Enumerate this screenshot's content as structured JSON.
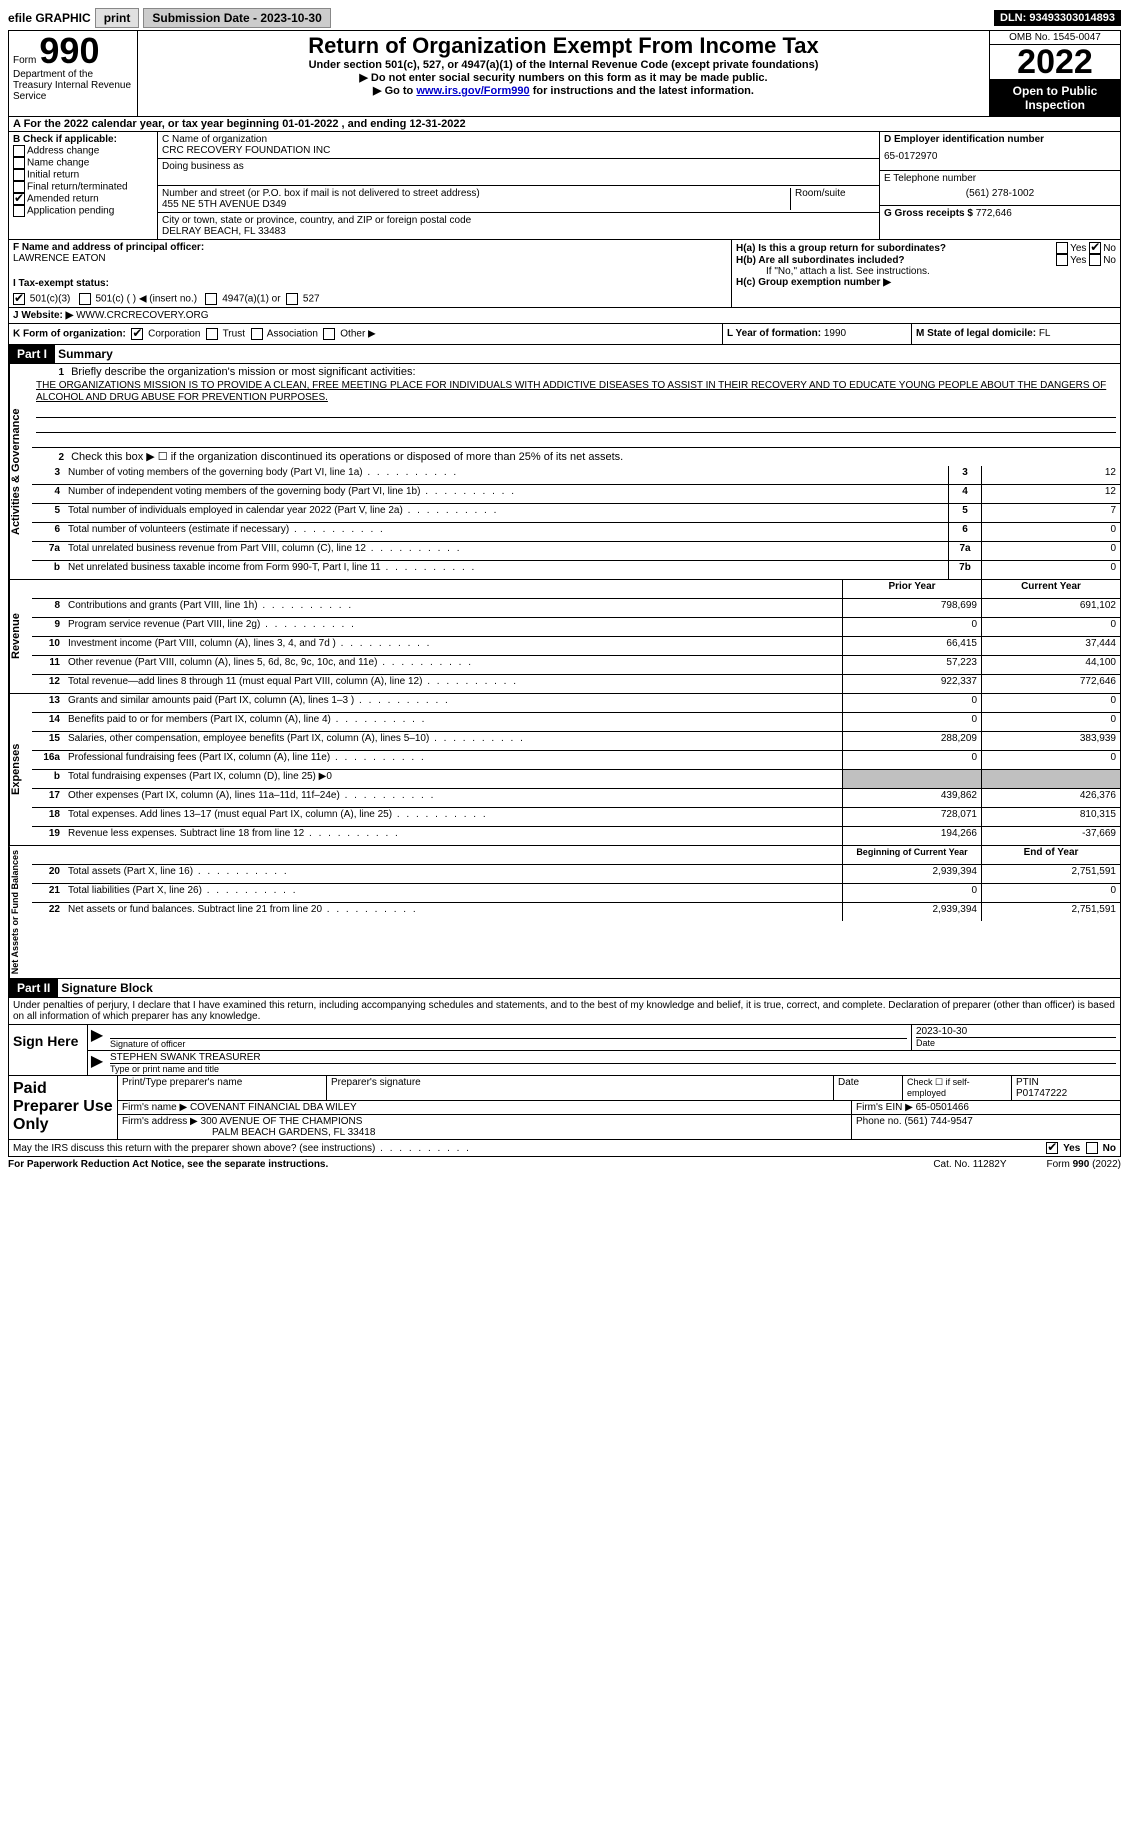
{
  "topbar": {
    "efile_label": "efile GRAPHIC",
    "print_btn": "print",
    "submission_label": "Submission Date - 2023-10-30",
    "dln": "DLN: 93493303014893"
  },
  "header": {
    "form_label": "Form",
    "form_number": "990",
    "dept": "Department of the Treasury Internal Revenue Service",
    "title": "Return of Organization Exempt From Income Tax",
    "subtitle": "Under section 501(c), 527, or 4947(a)(1) of the Internal Revenue Code (except private foundations)",
    "note1": "▶ Do not enter social security numbers on this form as it may be made public.",
    "note2_pre": "▶ Go to ",
    "note2_link": "www.irs.gov/Form990",
    "note2_post": " for instructions and the latest information.",
    "omb": "OMB No. 1545-0047",
    "year": "2022",
    "open": "Open to Public Inspection"
  },
  "row_a": "A For the 2022 calendar year, or tax year beginning 01-01-2022    , and ending 12-31-2022",
  "col_b": {
    "header": "B Check if applicable:",
    "items": [
      "Address change",
      "Name change",
      "Initial return",
      "Final return/terminated",
      "Amended return",
      "Application pending"
    ],
    "checked_index": 4
  },
  "col_c": {
    "name_label": "C Name of organization",
    "name": "CRC RECOVERY FOUNDATION INC",
    "dba_label": "Doing business as",
    "addr_label": "Number and street (or P.O. box if mail is not delivered to street address)",
    "addr": "455 NE 5TH AVENUE D349",
    "room_label": "Room/suite",
    "city_label": "City or town, state or province, country, and ZIP or foreign postal code",
    "city": "DELRAY BEACH, FL  33483"
  },
  "col_d": {
    "ein_label": "D Employer identification number",
    "ein": "65-0172970",
    "phone_label": "E Telephone number",
    "phone": "(561) 278-1002",
    "gross_label": "G Gross receipts $ ",
    "gross": "772,646"
  },
  "section_fh": {
    "f_label": "F Name and address of principal officer:",
    "f_name": "LAWRENCE EATON",
    "ha_label": "H(a)  Is this a group return for subordinates?",
    "hb_label": "H(b)  Are all subordinates included?",
    "hb_note": "If \"No,\" attach a list. See instructions.",
    "hc_label": "H(c)  Group exemption number ▶",
    "yes": "Yes",
    "no": "No"
  },
  "row_i": {
    "label": "I    Tax-exempt status:",
    "opt1": "501(c)(3)",
    "opt2": "501(c) (  ) ◀ (insert no.)",
    "opt3": "4947(a)(1) or",
    "opt4": "527"
  },
  "row_j": {
    "label": "J    Website: ▶",
    "value": "WWW.CRCRECOVERY.ORG"
  },
  "row_k": {
    "k_label": "K Form of organization:",
    "k_opts": [
      "Corporation",
      "Trust",
      "Association",
      "Other ▶"
    ],
    "l_label": "L Year of formation: ",
    "l_value": "1990",
    "m_label": "M State of legal domicile: ",
    "m_value": "FL"
  },
  "part1": {
    "header": "Part I",
    "title": "Summary",
    "q1_label": "Briefly describe the organization's mission or most significant activities:",
    "q1_text": "THE ORGANIZATIONS MISSION IS TO PROVIDE A CLEAN, FREE MEETING PLACE FOR INDIVIDUALS WITH ADDICTIVE DISEASES TO ASSIST IN THEIR RECOVERY AND TO EDUCATE YOUNG PEOPLE ABOUT THE DANGERS OF ALCOHOL AND DRUG ABUSE FOR PREVENTION PURPOSES.",
    "q2": "Check this box ▶ ☐ if the organization discontinued its operations or disposed of more than 25% of its net assets.",
    "prior_year_h": "Prior Year",
    "current_year_h": "Current Year",
    "begin_h": "Beginning of Current Year",
    "end_h": "End of Year",
    "sides": {
      "gov": "Activities & Governance",
      "rev": "Revenue",
      "exp": "Expenses",
      "net": "Net Assets or Fund Balances"
    },
    "gov_rows": [
      {
        "n": "3",
        "d": "Number of voting members of the governing body (Part VI, line 1a)",
        "box": "3",
        "v": "12"
      },
      {
        "n": "4",
        "d": "Number of independent voting members of the governing body (Part VI, line 1b)",
        "box": "4",
        "v": "12"
      },
      {
        "n": "5",
        "d": "Total number of individuals employed in calendar year 2022 (Part V, line 2a)",
        "box": "5",
        "v": "7"
      },
      {
        "n": "6",
        "d": "Total number of volunteers (estimate if necessary)",
        "box": "6",
        "v": "0"
      },
      {
        "n": "7a",
        "d": "Total unrelated business revenue from Part VIII, column (C), line 12",
        "box": "7a",
        "v": "0"
      },
      {
        "n": "b",
        "d": "Net unrelated business taxable income from Form 990-T, Part I, line 11",
        "box": "7b",
        "v": "0"
      }
    ],
    "rev_rows": [
      {
        "n": "8",
        "d": "Contributions and grants (Part VIII, line 1h)",
        "p": "798,699",
        "c": "691,102"
      },
      {
        "n": "9",
        "d": "Program service revenue (Part VIII, line 2g)",
        "p": "0",
        "c": "0"
      },
      {
        "n": "10",
        "d": "Investment income (Part VIII, column (A), lines 3, 4, and 7d )",
        "p": "66,415",
        "c": "37,444"
      },
      {
        "n": "11",
        "d": "Other revenue (Part VIII, column (A), lines 5, 6d, 8c, 9c, 10c, and 11e)",
        "p": "57,223",
        "c": "44,100"
      },
      {
        "n": "12",
        "d": "Total revenue—add lines 8 through 11 (must equal Part VIII, column (A), line 12)",
        "p": "922,337",
        "c": "772,646"
      }
    ],
    "exp_rows": [
      {
        "n": "13",
        "d": "Grants and similar amounts paid (Part IX, column (A), lines 1–3 )",
        "p": "0",
        "c": "0"
      },
      {
        "n": "14",
        "d": "Benefits paid to or for members (Part IX, column (A), line 4)",
        "p": "0",
        "c": "0"
      },
      {
        "n": "15",
        "d": "Salaries, other compensation, employee benefits (Part IX, column (A), lines 5–10)",
        "p": "288,209",
        "c": "383,939"
      },
      {
        "n": "16a",
        "d": "Professional fundraising fees (Part IX, column (A), line 11e)",
        "p": "0",
        "c": "0"
      },
      {
        "n": "b",
        "d": "Total fundraising expenses (Part IX, column (D), line 25) ▶0",
        "shaded": true
      },
      {
        "n": "17",
        "d": "Other expenses (Part IX, column (A), lines 11a–11d, 11f–24e)",
        "p": "439,862",
        "c": "426,376"
      },
      {
        "n": "18",
        "d": "Total expenses. Add lines 13–17 (must equal Part IX, column (A), line 25)",
        "p": "728,071",
        "c": "810,315"
      },
      {
        "n": "19",
        "d": "Revenue less expenses. Subtract line 18 from line 12",
        "p": "194,266",
        "c": "-37,669"
      }
    ],
    "net_rows": [
      {
        "n": "20",
        "d": "Total assets (Part X, line 16)",
        "p": "2,939,394",
        "c": "2,751,591"
      },
      {
        "n": "21",
        "d": "Total liabilities (Part X, line 26)",
        "p": "0",
        "c": "0"
      },
      {
        "n": "22",
        "d": "Net assets or fund balances. Subtract line 21 from line 20",
        "p": "2,939,394",
        "c": "2,751,591"
      }
    ]
  },
  "part2": {
    "header": "Part II",
    "title": "Signature Block",
    "penalty": "Under penalties of perjury, I declare that I have examined this return, including accompanying schedules and statements, and to the best of my knowledge and belief, it is true, correct, and complete. Declaration of preparer (other than officer) is based on all information of which preparer has any knowledge.",
    "sign_here": "Sign Here",
    "sig_officer_label": "Signature of officer",
    "sig_date": "2023-10-30",
    "date_label": "Date",
    "sig_name": "STEPHEN SWANK  TREASURER",
    "sig_name_label": "Type or print name and title",
    "paid_label": "Paid Preparer Use Only",
    "prep_name_label": "Print/Type preparer's name",
    "prep_sig_label": "Preparer's signature",
    "prep_date_label": "Date",
    "prep_check_label": "Check ☐ if self-employed",
    "ptin_label": "PTIN",
    "ptin": "P01747222",
    "firm_name_label": "Firm's name    ▶ ",
    "firm_name": "COVENANT FINANCIAL DBA WILEY",
    "firm_ein_label": "Firm's EIN ▶ ",
    "firm_ein": "65-0501466",
    "firm_addr_label": "Firm's address ▶ ",
    "firm_addr1": "300 AVENUE OF THE CHAMPIONS",
    "firm_addr2": "PALM BEACH GARDENS, FL  33418",
    "firm_phone_label": "Phone no. ",
    "firm_phone": "(561) 744-9547"
  },
  "footer": {
    "irs_discuss": "May the IRS discuss this return with the preparer shown above? (see instructions)",
    "yes": "Yes",
    "no": "No",
    "paperwork": "For Paperwork Reduction Act Notice, see the separate instructions.",
    "cat": "Cat. No. 11282Y",
    "form": "Form 990 (2022)"
  }
}
